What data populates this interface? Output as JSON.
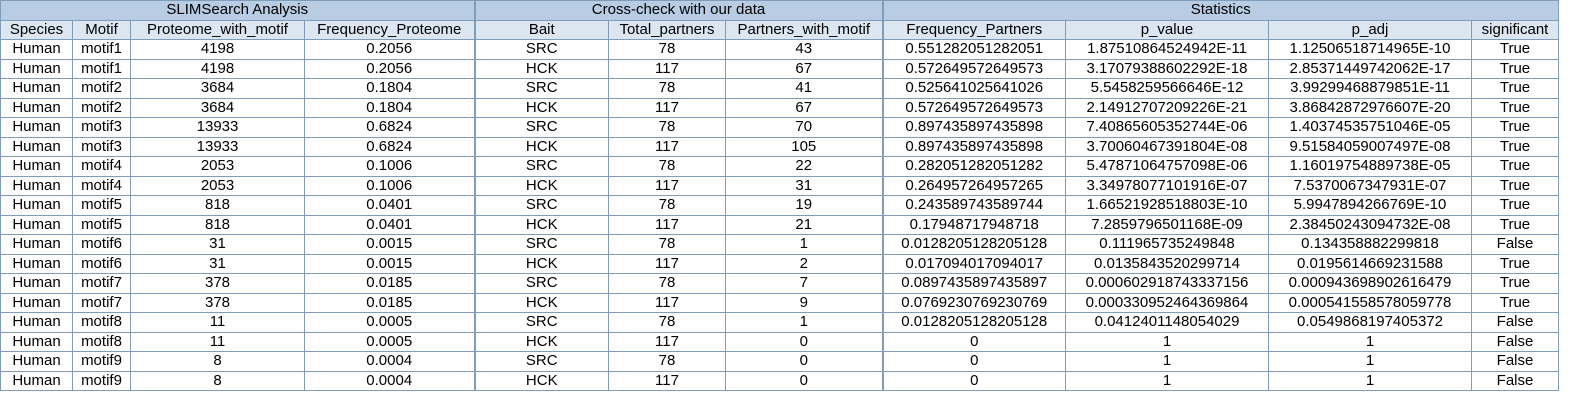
{
  "groups": {
    "slimsearch": "SLIMSearch Analysis",
    "crosscheck": "Cross-check with our data",
    "statistics": "Statistics"
  },
  "columns": [
    "Species",
    "Motif",
    "Proteome_with_motif",
    "Frequency_Proteome",
    "Bait",
    "Total_partners",
    "Partners_with_motif",
    "Frequency_Partners",
    "p_value",
    "p_adj",
    "significant"
  ],
  "rows": [
    [
      "Human",
      "motif1",
      "4198",
      "0.2056",
      "SRC",
      "78",
      "43",
      "0.551282051282051",
      "1.87510864524942E-11",
      "1.12506518714965E-10",
      "True"
    ],
    [
      "Human",
      "motif1",
      "4198",
      "0.2056",
      "HCK",
      "117",
      "67",
      "0.572649572649573",
      "3.17079388602292E-18",
      "2.85371449742062E-17",
      "True"
    ],
    [
      "Human",
      "motif2",
      "3684",
      "0.1804",
      "SRC",
      "78",
      "41",
      "0.525641025641026",
      "5.5458259566646E-12",
      "3.99299468879851E-11",
      "True"
    ],
    [
      "Human",
      "motif2",
      "3684",
      "0.1804",
      "HCK",
      "117",
      "67",
      "0.572649572649573",
      "2.14912707209226E-21",
      "3.86842872976607E-20",
      "True"
    ],
    [
      "Human",
      "motif3",
      "13933",
      "0.6824",
      "SRC",
      "78",
      "70",
      "0.897435897435898",
      "7.40865605352744E-06",
      "1.40374535751046E-05",
      "True"
    ],
    [
      "Human",
      "motif3",
      "13933",
      "0.6824",
      "HCK",
      "117",
      "105",
      "0.897435897435898",
      "3.70060467391804E-08",
      "9.51584059007497E-08",
      "True"
    ],
    [
      "Human",
      "motif4",
      "2053",
      "0.1006",
      "SRC",
      "78",
      "22",
      "0.282051282051282",
      "5.47871064757098E-06",
      "1.16019754889738E-05",
      "True"
    ],
    [
      "Human",
      "motif4",
      "2053",
      "0.1006",
      "HCK",
      "117",
      "31",
      "0.264957264957265",
      "3.34978077101916E-07",
      "7.5370067347931E-07",
      "True"
    ],
    [
      "Human",
      "motif5",
      "818",
      "0.0401",
      "SRC",
      "78",
      "19",
      "0.243589743589744",
      "1.66521928518803E-10",
      "5.9947894266769E-10",
      "True"
    ],
    [
      "Human",
      "motif5",
      "818",
      "0.0401",
      "HCK",
      "117",
      "21",
      "0.17948717948718",
      "7.2859796501168E-09",
      "2.38450243094732E-08",
      "True"
    ],
    [
      "Human",
      "motif6",
      "31",
      "0.0015",
      "SRC",
      "78",
      "1",
      "0.0128205128205128",
      "0.111965735249848",
      "0.134358882299818",
      "False"
    ],
    [
      "Human",
      "motif6",
      "31",
      "0.0015",
      "HCK",
      "117",
      "2",
      "0.017094017094017",
      "0.0135843520299714",
      "0.0195614669231588",
      "True"
    ],
    [
      "Human",
      "motif7",
      "378",
      "0.0185",
      "SRC",
      "78",
      "7",
      "0.0897435897435897",
      "0.000602918743337156",
      "0.000943698902616479",
      "True"
    ],
    [
      "Human",
      "motif7",
      "378",
      "0.0185",
      "HCK",
      "117",
      "9",
      "0.0769230769230769",
      "0.000330952464369864",
      "0.000541558578059778",
      "True"
    ],
    [
      "Human",
      "motif8",
      "11",
      "0.0005",
      "SRC",
      "78",
      "1",
      "0.0128205128205128",
      "0.0412401148054029",
      "0.0549868197405372",
      "False"
    ],
    [
      "Human",
      "motif8",
      "11",
      "0.0005",
      "HCK",
      "117",
      "0",
      "0",
      "1",
      "1",
      "False"
    ],
    [
      "Human",
      "motif9",
      "8",
      "0.0004",
      "SRC",
      "78",
      "0",
      "0",
      "1",
      "1",
      "False"
    ],
    [
      "Human",
      "motif9",
      "8",
      "0.0004",
      "HCK",
      "117",
      "0",
      "0",
      "1",
      "1",
      "False"
    ]
  ],
  "colors": {
    "group_header_bg": "#b8cce4",
    "column_header_bg": "#dce6f1",
    "grid": "#7f9db9"
  }
}
